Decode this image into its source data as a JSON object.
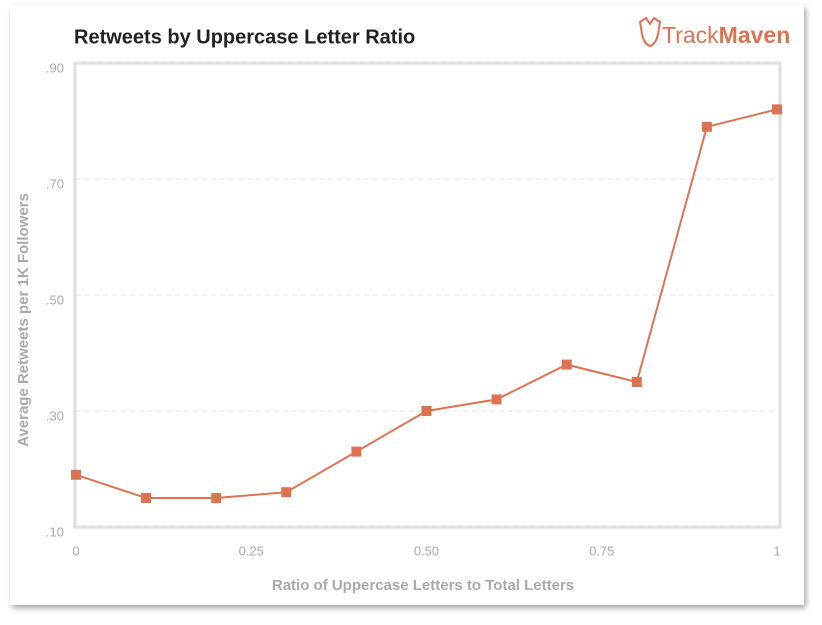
{
  "branding": [
    "Track",
    "Maven"
  ],
  "chart_data": {
    "type": "line",
    "title": "Retweets by Uppercase Letter Ratio",
    "x_label": "Ratio of Uppercase Letters to Total Letters",
    "y_label": "Average Retweets per 1K Followers",
    "x": [
      0,
      0.1,
      0.2,
      0.3,
      0.4,
      0.5,
      0.6,
      0.7,
      0.8,
      0.9,
      1
    ],
    "series": [
      {
        "name": "Average Retweets",
        "color": "#dc7454",
        "values": [
          0.19,
          0.15,
          0.15,
          0.16,
          0.23,
          0.3,
          0.32,
          0.38,
          0.35,
          0.79,
          0.82
        ]
      }
    ],
    "xlim": [
      0,
      1
    ],
    "xticks": [
      0,
      0.25,
      {
        "value": 0.5,
        "label": "0.50"
      },
      0.75,
      1
    ],
    "ylim": [
      0.1,
      0.9
    ],
    "yticks": [
      {
        "value": 0.1,
        "label": ".10"
      },
      {
        "value": 0.3,
        "label": ".30"
      },
      {
        "value": 0.5,
        "label": ".50"
      },
      {
        "value": 0.7,
        "label": ".70"
      },
      {
        "value": 0.9,
        "label": ".90"
      }
    ],
    "grid": true
  }
}
